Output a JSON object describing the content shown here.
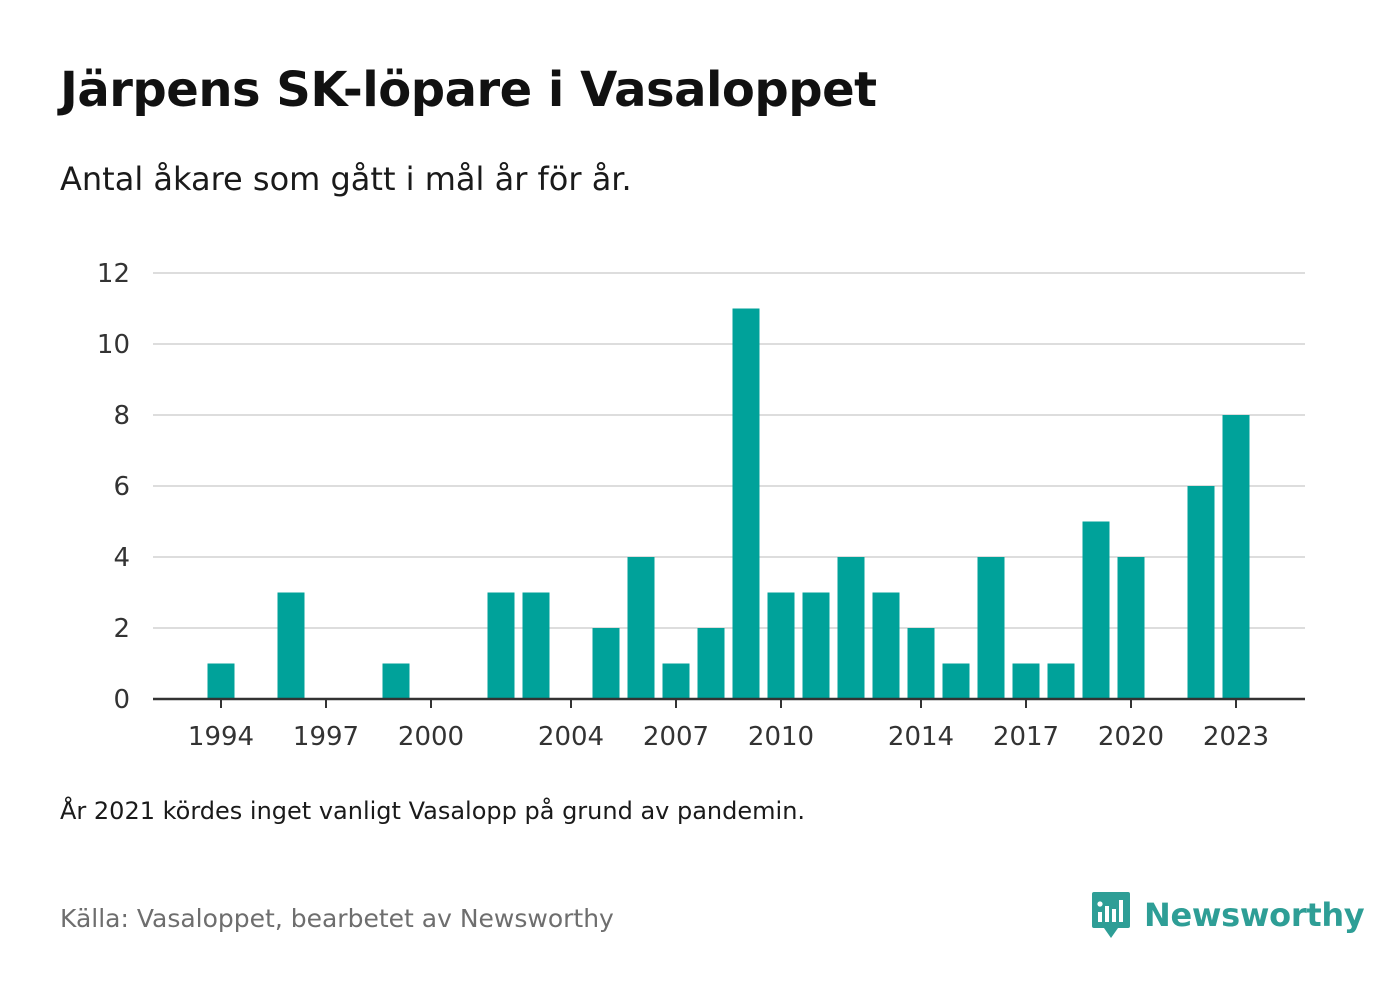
{
  "title": "Järpens SK-löpare i Vasaloppet",
  "subtitle": "Antal åkare som gått i mål år för år.",
  "note": "År 2021 kördes inget vanligt Vasalopp på grund av pandemin.",
  "source": "Källa: Vasaloppet, bearbetet av Newsworthy",
  "brand": {
    "name": "Newsworthy",
    "icon": "newsworthy-logo-icon",
    "color": "#2e9e96"
  },
  "chart_data": {
    "type": "bar",
    "title": "",
    "xlabel": "",
    "ylabel": "",
    "categories": [
      1993,
      1994,
      1995,
      1996,
      1997,
      1998,
      1999,
      2000,
      2001,
      2002,
      2003,
      2004,
      2005,
      2006,
      2007,
      2008,
      2009,
      2010,
      2011,
      2012,
      2013,
      2014,
      2015,
      2016,
      2017,
      2018,
      2019,
      2020,
      2021,
      2022,
      2023
    ],
    "values": [
      0,
      1,
      0,
      3,
      0,
      0,
      1,
      0,
      0,
      3,
      3,
      0,
      2,
      4,
      1,
      2,
      11,
      3,
      3,
      4,
      3,
      2,
      1,
      4,
      1,
      1,
      5,
      4,
      0,
      6,
      8
    ],
    "x_tick_labels": [
      "1994",
      "1997",
      "2000",
      "2004",
      "2007",
      "2010",
      "2014",
      "2017",
      "2020",
      "2023"
    ],
    "ylim": [
      0,
      12
    ],
    "y_ticks": [
      0,
      2,
      4,
      6,
      8,
      10,
      12
    ],
    "grid": true,
    "bar_color": "#00a29a",
    "grid_color": "#dddddd",
    "axis_color": "#333333"
  }
}
